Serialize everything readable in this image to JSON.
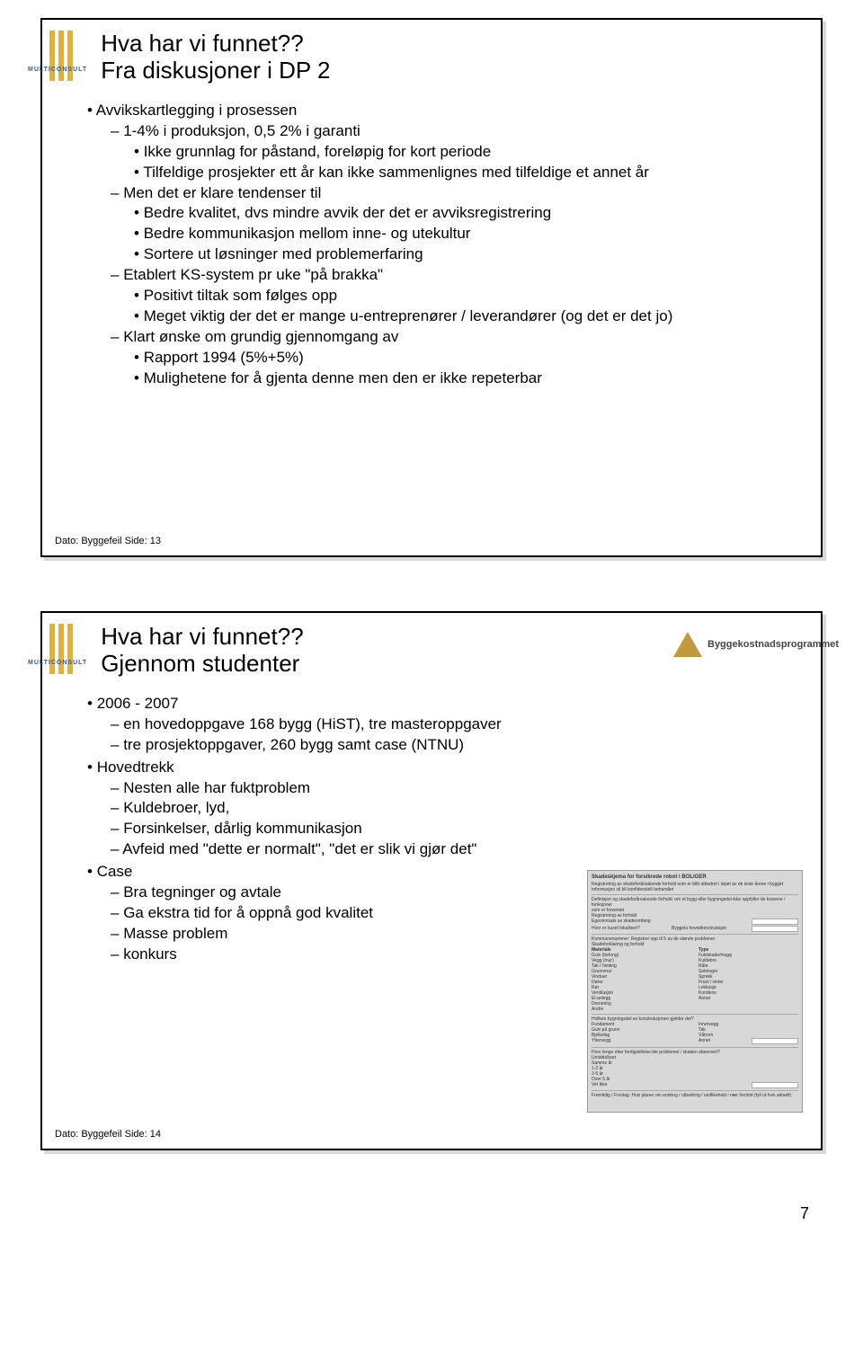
{
  "page_number": "7",
  "logo_name": "MULTICONSULT",
  "right_logo_text": "Byggekostnadsprogrammet",
  "slide13": {
    "title_line1": "Hva har vi funnet??",
    "title_line2": "Fra diskusjoner i DP 2",
    "footer": "Dato:   Byggefeil  Side: 13",
    "b1": "Avvikskartlegging i prosessen",
    "b1_1": "1-4% i produksjon, 0,5 2% i garanti",
    "b1_1_1": "Ikke grunnlag for påstand, foreløpig for kort periode",
    "b1_1_2": "Tilfeldige prosjekter ett år kan ikke sammenlignes med tilfeldige et annet år",
    "b1_2": "Men det er klare tendenser til",
    "b1_2_1": "Bedre kvalitet, dvs mindre avvik der det er avviksregistrering",
    "b1_2_2": "Bedre kommunikasjon mellom inne- og utekultur",
    "b1_2_3": "Sortere ut løsninger med problemerfaring",
    "b1_3": "Etablert KS-system pr uke \"på brakka\"",
    "b1_3_1": "Positivt tiltak som følges opp",
    "b1_3_2": "Meget viktig der det er mange u-entreprenører / leverandører (og det er det jo)",
    "b1_4": "Klart ønske om grundig gjennomgang av",
    "b1_4_1": "Rapport 1994 (5%+5%)",
    "b1_4_2": "Mulighetene for å gjenta denne men den er ikke repeterbar"
  },
  "slide14": {
    "title_line1": "Hva har vi funnet??",
    "title_line2": "Gjennom studenter",
    "footer": "Dato:   Byggefeil  Side: 14",
    "b1": "2006 - 2007",
    "b1_1": "en hovedoppgave 168 bygg (HiST), tre masteroppgaver",
    "b1_2": "tre prosjektoppgaver, 260 bygg samt case (NTNU)",
    "b2": "Hovedtrekk",
    "b2_1": "Nesten alle har fuktproblem",
    "b2_2": "Kuldebroer, lyd,",
    "b2_3": "Forsinkelser, dårlig kommunikasjon",
    "b2_4": "Avfeid med \"dette er normalt\", \"det er slik vi gjør det\"",
    "b3": "Case",
    "b3_1": "Bra tegninger og avtale",
    "b3_2": "Ga ekstra tid for å oppnå god kvalitet",
    "b3_3": "Masse problem",
    "b3_4": "konkurs"
  },
  "form": {
    "title": "Skadeskjema for forsikrede robot i BOLIGER",
    "sub1": "Registrering av skadeforårsakende forhold som er blitt utbedret i løpet av de siste årene i bygget",
    "sub2": "Informasjon vil bli konfidensielt behandlet",
    "q1": "Definisjon og skadeforårsakende forhold: om et bygg eller bygningsdel ikke oppfyller de kravene / funksjoner",
    "r1": "som er forventet",
    "r2": "Registrering av forhold",
    "r3": "Egeninnsats av skadeomfang",
    "r4": "Hvor er huset lokalisert?",
    "h_region": "Byggets hovedkonstruksjon",
    "r5": "Kommunenummer: Registrer opp til 5 av de største problemer",
    "r6": "Skadeforklaring og forhold",
    "c1h": "Materiale",
    "c1_1": "Gulv (betong)",
    "c1_2": "Vegg (mur)",
    "c1_3": "Tak / himling",
    "c1_4": "Grunnmur",
    "c1_5": "Vinduer",
    "c1_6": "Dører",
    "c1_7": "Rør",
    "c1_8": "Ventilasjon",
    "c1_9": "El-anlegg",
    "c1_10": "Drenering",
    "c1_11": "Andre",
    "c2h": "Type",
    "c2_1": "Fuktskade/mugg",
    "c2_2": "Kuldebro",
    "c2_3": "Råte",
    "c2_4": "Setninger",
    "c2_5": "Sprekk",
    "c2_6": "Frost / vinter",
    "c2_7": "Lekkasje",
    "c2_8": "Kondens",
    "c2_9": "Annet",
    "q2": "Hvilken bygningsdel av konstruksjonen gjelder det?",
    "g1": "Fundament",
    "g2": "Gulv på grunn",
    "g3": "Bjelkelag",
    "g4": "Yttervegg",
    "g5": "Innervegg",
    "g6": "Tak",
    "g7": "Våtrom",
    "g8": "Annet",
    "q3": "Hvor lenge etter ferdigstillelse ble problemet / skaden observert?",
    "t1": "Umiddelbart",
    "t2": "Samme år",
    "t3": "1-2 år",
    "t4": "3-5 år",
    "t5": "Over 5 år",
    "t6": "Vet ikke",
    "q4": "Fremtidig / Forslag: Hvis planer om endring / utbedring / vedlikehold i nær fremtid (fyll ut hvis aktuelt)"
  }
}
